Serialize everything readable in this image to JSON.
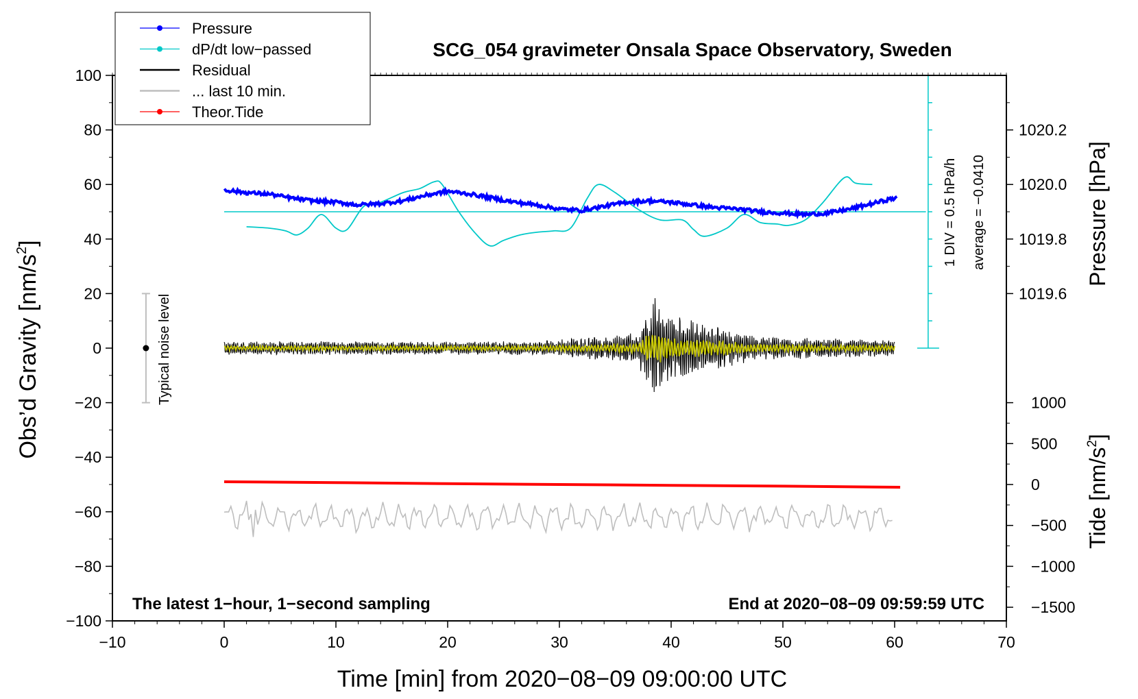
{
  "chart_data": {
    "type": "line",
    "title": "SCG_054 gravimeter Onsala Space Observatory, Sweden",
    "xlabel": "Time [min] from 2020−08−09 09:00:00 UTC",
    "ylabel": "Obs’d Gravity [nm/s²]",
    "ylabel_main": "Obs’d Gravity [nm/s",
    "ylabel_sup": "2",
    "ylabel_end": "]",
    "xlim": [
      -10,
      70
    ],
    "ylim": [
      -100,
      100
    ],
    "xticks": [
      -10,
      0,
      10,
      20,
      30,
      40,
      50,
      60,
      70
    ],
    "xtick_labels": [
      "−10",
      "0",
      "10",
      "20",
      "30",
      "40",
      "50",
      "60",
      "70"
    ],
    "yticks": [
      -100,
      -80,
      -60,
      -40,
      -20,
      0,
      20,
      40,
      60,
      80,
      100
    ],
    "ytick_labels": [
      "−100",
      "−80",
      "−60",
      "−40",
      "−20",
      "0",
      "20",
      "40",
      "60",
      "80",
      "100"
    ],
    "pressure_axis": {
      "label": "Pressure [hPa]",
      "ticks": [
        1019.6,
        1019.8,
        1020.0,
        1020.2
      ],
      "tick_labels": [
        "1019.6",
        "1019.8",
        "1020.0",
        "1020.2"
      ],
      "gravity_at_1020": 60,
      "gravity_per_hpa": 100
    },
    "tide_axis": {
      "label_main": "Tide [nm/s",
      "label_sup": "2",
      "label_end": "]",
      "ticks": [
        -1500,
        -1000,
        -500,
        0,
        500,
        1000
      ],
      "tick_labels": [
        "−1500",
        "−1000",
        "−500",
        "0",
        "500",
        "1000"
      ],
      "gravity_at_0": -50,
      "gravity_per_unit": 0.03
    },
    "dpdt_scale": {
      "label": "1 DIV = 0.5 hPa/h",
      "average_label": "average = −0.0410",
      "x": 63,
      "y_range": [
        0,
        100
      ],
      "div_count": 10
    },
    "noise_bar": {
      "label": "Typical noise level",
      "x": -7,
      "center": 0,
      "range": [
        -20,
        20
      ]
    },
    "bottom_left_note": "The latest 1−hour, 1−second sampling",
    "bottom_right_note": "End at 2020−08−09 09:59:59 UTC",
    "legend": [
      {
        "name": "Pressure",
        "color": "#0000ff",
        "marker": true
      },
      {
        "name": "dP/dt low−passed",
        "color": "#00c8c8",
        "marker": true
      },
      {
        "name": "Residual",
        "color": "#000000",
        "marker": false
      },
      {
        "name": "... last 10 min.",
        "color": "#bebebe",
        "marker": false
      },
      {
        "name": "Theor.Tide",
        "color": "#ff0000",
        "marker": true
      }
    ],
    "series": [
      {
        "name": "Pressure",
        "color": "#0000ff",
        "x": [
          0,
          2,
          4,
          6,
          8,
          10,
          12,
          14,
          16,
          18,
          20,
          22,
          24,
          26,
          28,
          30,
          32,
          34,
          36,
          38,
          40,
          42,
          44,
          46,
          48,
          50,
          52,
          54,
          56,
          58,
          60
        ],
        "y": [
          58,
          57,
          56.5,
          55,
          54,
          53.5,
          52.5,
          53,
          54,
          56,
          57.5,
          56.5,
          55,
          53.5,
          52.5,
          51,
          50.5,
          52,
          53.5,
          54,
          53.5,
          52.5,
          51.5,
          51,
          50,
          49.5,
          49,
          49.5,
          51,
          53,
          55
        ]
      },
      {
        "name": "dP/dt low−passed",
        "color": "#00c8c8",
        "x": [
          2,
          4,
          5.5,
          6.5,
          7.5,
          8.7,
          10,
          11,
          12.5,
          14,
          16,
          17.5,
          18.8,
          19.5,
          21,
          22.5,
          23.8,
          25,
          26.5,
          28,
          29.5,
          31,
          32.5,
          33.5,
          35,
          37,
          39,
          41,
          42,
          43,
          45,
          46.5,
          48,
          49.5,
          50.5,
          52,
          53.5,
          55.5,
          56.5,
          58
        ],
        "y": [
          44.5,
          44,
          43,
          41.5,
          44,
          49,
          44,
          43.5,
          52,
          53.5,
          57,
          58.5,
          61,
          60,
          50,
          42,
          37.5,
          39.5,
          41.5,
          42.5,
          43,
          44,
          55,
          60,
          57,
          51,
          47,
          47,
          43.5,
          41,
          44,
          49,
          46,
          45.5,
          45,
          47,
          53,
          62.5,
          60.5,
          60
        ]
      },
      {
        "name": "Residual",
        "color": "#000000",
        "x_range": [
          0,
          60
        ],
        "baseline": 0
      },
      {
        "name": "Residual low−passed",
        "color": "#c8c800",
        "x_range": [
          0,
          60
        ],
        "baseline": 0
      },
      {
        "name": "... last 10 min.",
        "color": "#bebebe",
        "x_range": [
          0,
          60
        ],
        "baseline": -62
      },
      {
        "name": "Theor.Tide",
        "color": "#ff0000",
        "x": [
          0,
          10,
          20,
          30,
          40,
          50,
          60.5
        ],
        "y": [
          -49,
          -49.3,
          -49.7,
          -50,
          -50.3,
          -50.6,
          -51
        ]
      }
    ],
    "pressure_reference_line": 50
  }
}
